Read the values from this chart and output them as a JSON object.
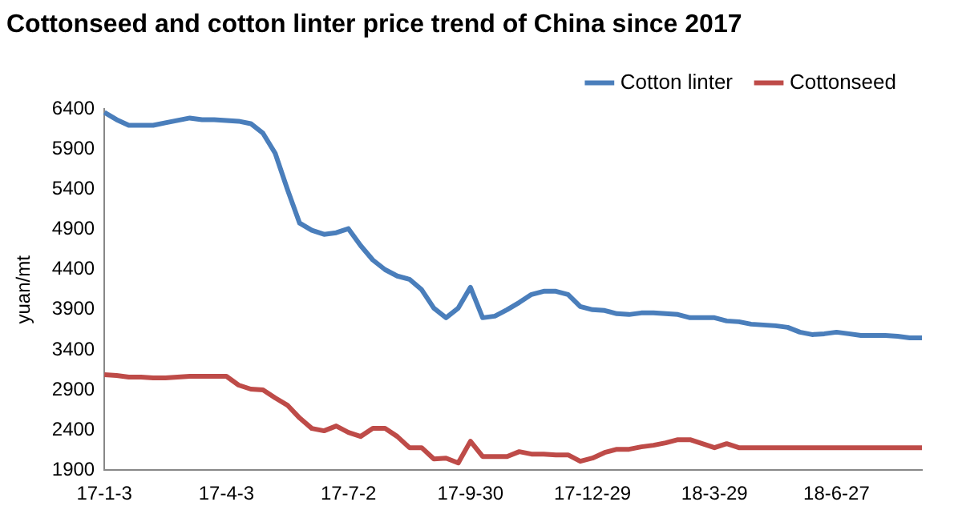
{
  "chart_data": {
    "type": "line",
    "title": "Cottonseed and cotton linter price trend of China since 2017",
    "ylabel": "yuan/mt",
    "categories": [
      "17-1-3",
      null,
      null,
      null,
      null,
      null,
      null,
      null,
      null,
      null,
      "17-4-3",
      null,
      null,
      null,
      null,
      null,
      null,
      null,
      null,
      null,
      "17-7-2",
      null,
      null,
      null,
      null,
      null,
      null,
      null,
      null,
      null,
      "17-9-30",
      null,
      null,
      null,
      null,
      null,
      null,
      null,
      null,
      null,
      "17-12-29",
      null,
      null,
      null,
      null,
      null,
      null,
      null,
      null,
      null,
      "18-3-29",
      null,
      null,
      null,
      null,
      null,
      null,
      null,
      null,
      null,
      "18-6-27",
      null,
      null,
      null,
      null,
      null,
      null,
      null
    ],
    "series": [
      {
        "name": "Cotton linter",
        "color": "#4a7ebb",
        "values": [
          6360,
          6270,
          6200,
          6200,
          6200,
          6230,
          6260,
          6290,
          6270,
          6270,
          6260,
          6250,
          6220,
          6100,
          5850,
          5400,
          4980,
          4890,
          4840,
          4860,
          4910,
          4700,
          4520,
          4400,
          4320,
          4280,
          4150,
          3920,
          3800,
          3920,
          4180,
          3800,
          3820,
          3900,
          3990,
          4090,
          4130,
          4130,
          4090,
          3940,
          3900,
          3890,
          3850,
          3840,
          3860,
          3860,
          3850,
          3840,
          3800,
          3800,
          3800,
          3760,
          3750,
          3720,
          3710,
          3700,
          3680,
          3620,
          3590,
          3600,
          3620,
          3600,
          3580,
          3580,
          3580,
          3570,
          3550,
          3550
        ]
      },
      {
        "name": "Cottonseed",
        "color": "#be4b48",
        "values": [
          3090,
          3080,
          3060,
          3060,
          3050,
          3050,
          3060,
          3070,
          3070,
          3070,
          3070,
          2960,
          2910,
          2900,
          2800,
          2710,
          2550,
          2420,
          2390,
          2450,
          2370,
          2320,
          2420,
          2420,
          2320,
          2180,
          2180,
          2040,
          2050,
          1990,
          2260,
          2070,
          2070,
          2070,
          2130,
          2100,
          2100,
          2090,
          2090,
          2010,
          2050,
          2120,
          2160,
          2160,
          2190,
          2210,
          2240,
          2280,
          2280,
          2230,
          2180,
          2230,
          2180,
          2180,
          2180,
          2180,
          2180,
          2180,
          2180,
          2180,
          2180,
          2180,
          2180,
          2180,
          2180,
          2180,
          2180,
          2180
        ]
      }
    ],
    "ylim": [
      1900,
      6400
    ],
    "yticks": [
      1900,
      2400,
      2900,
      3400,
      3900,
      4400,
      4900,
      5400,
      5900,
      6400
    ],
    "grid": false,
    "legend": "top right",
    "marker": "none",
    "line_style": "solid"
  }
}
